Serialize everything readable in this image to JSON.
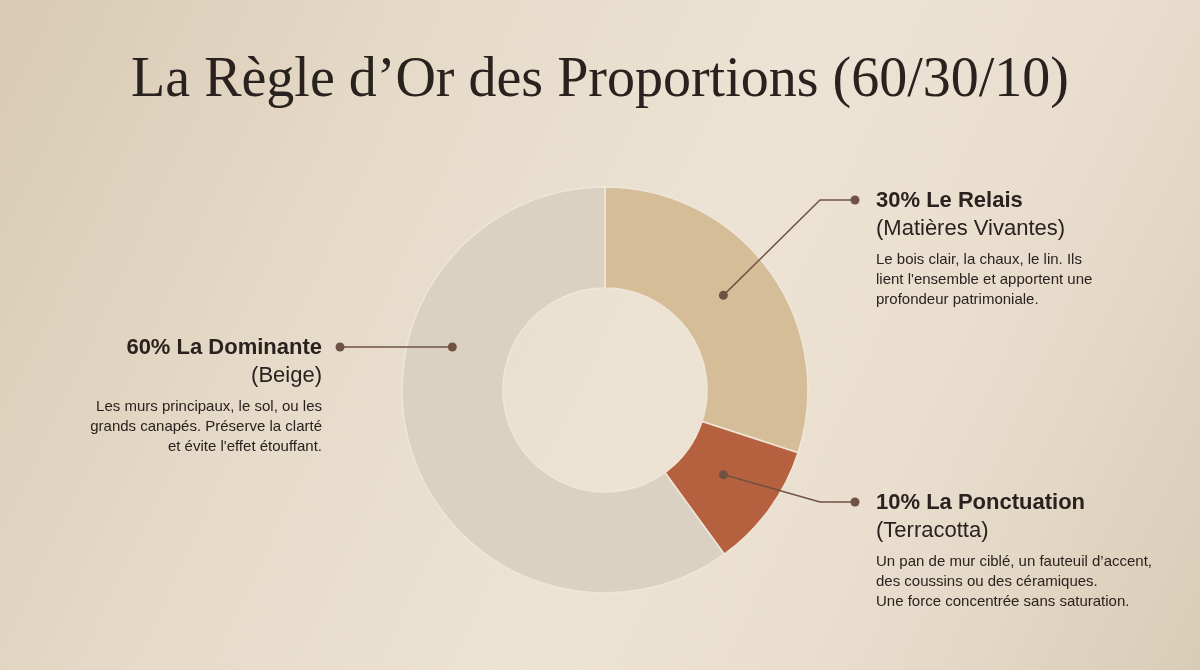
{
  "chart_data": {
    "type": "donut",
    "title": "La Règle d’Or des Proportions (60/30/10)",
    "categories": [
      "Le Relais",
      "La Ponctuation",
      "La Dominante"
    ],
    "values": [
      30,
      10,
      60
    ],
    "colors": [
      "#d5bd98",
      "#b5603e",
      "#dad1c2"
    ],
    "value_labels": [
      "30%",
      "10%",
      "60%"
    ],
    "annotations": [
      "(Matières Vivantes)",
      "Le bois clair, la chaux, le lin. Ils\nlient l'ensemble et apportent une\nprofondeur patrimoniale.",
      "(Terracotta)",
      "Un pan de mur ciblé, un fauteuil d’accent,\ndes coussins ou des céramiques.\nUne force concentrée sans saturation.",
      "(Beige)",
      "Les murs principaux, le sol, ou les\ngrands canapés. Préserve la clarté\net évite l'effet étouffant."
    ]
  }
}
